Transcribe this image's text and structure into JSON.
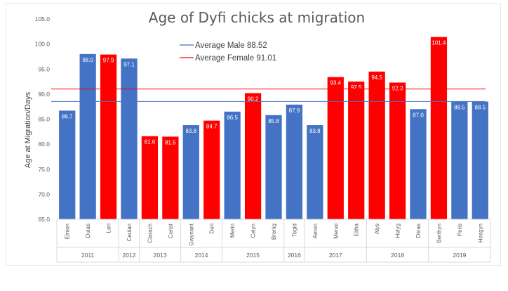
{
  "chart_data": {
    "type": "bar",
    "title": "Age of Dyfi chicks at migration",
    "ylabel": "Age at Migration/Days",
    "xlabel": "",
    "ylim": [
      65.0,
      105.0
    ],
    "yticks": [
      "65.0",
      "70.0",
      "75.0",
      "80.0",
      "85.0",
      "90.0",
      "95.0",
      "100.0",
      "105.0"
    ],
    "grid": false,
    "legend_position": "top-center",
    "colors": {
      "male": "#4472c4",
      "female": "#ff0000"
    },
    "categories": [
      "Einion",
      "Dulas",
      "Leri",
      "Ceulan",
      "Clarach",
      "Cerist",
      "Gwynant",
      "Deri",
      "Merin",
      "Celyn",
      "Brenig",
      "Tegid",
      "Aeron",
      "Menai",
      "Eitha",
      "Alys",
      "Helyg",
      "Dinas",
      "Berthyn",
      "Peris",
      "Hesgyn"
    ],
    "values": [
      86.7,
      98.0,
      97.9,
      97.1,
      81.6,
      81.5,
      83.8,
      84.7,
      86.5,
      90.2,
      85.8,
      87.9,
      83.8,
      93.4,
      92.5,
      94.5,
      92.3,
      87.0,
      101.4,
      88.5,
      88.5
    ],
    "value_labels": [
      "86.7",
      "98.0",
      "97.9",
      "97.1",
      "81.6",
      "81.5",
      "83.8",
      "84.7",
      "86.5",
      "90.2",
      "85.8",
      "87.9",
      "83.8",
      "93.4",
      "92.5",
      "94.5",
      "92.3",
      "87.0",
      "101.4",
      "88.5",
      "88.5"
    ],
    "sex": [
      "male",
      "male",
      "female",
      "male",
      "female",
      "female",
      "male",
      "female",
      "male",
      "female",
      "male",
      "male",
      "male",
      "female",
      "female",
      "female",
      "female",
      "male",
      "female",
      "male",
      "male"
    ],
    "years": [
      {
        "label": "2011",
        "count": 3
      },
      {
        "label": "2012",
        "count": 1
      },
      {
        "label": "2013",
        "count": 2
      },
      {
        "label": "2014",
        "count": 2
      },
      {
        "label": "2015",
        "count": 3
      },
      {
        "label": "2016",
        "count": 1
      },
      {
        "label": "2017",
        "count": 3
      },
      {
        "label": "2018",
        "count": 3
      },
      {
        "label": "2019",
        "count": 3
      }
    ],
    "reference_lines": [
      {
        "label": "Average Male 88.52",
        "value": 88.52,
        "color": "#4472c4"
      },
      {
        "label": "Average Female 91.01",
        "value": 91.01,
        "color": "#ff0000"
      }
    ]
  }
}
